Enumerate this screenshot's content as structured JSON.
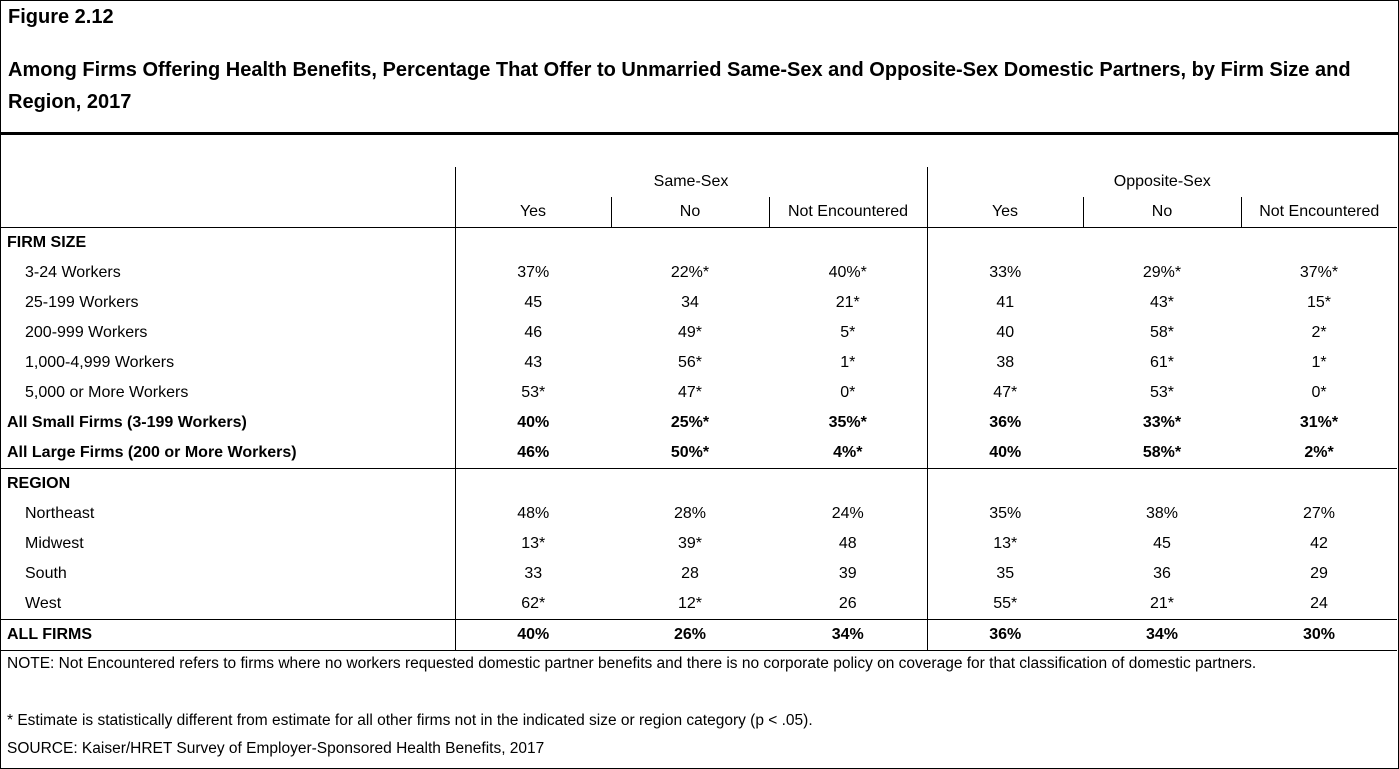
{
  "figure_label": "Figure 2.12",
  "title": "Among Firms Offering Health Benefits, Percentage That Offer to Unmarried Same-Sex and Opposite-Sex Domestic Partners, by Firm Size and Region, 2017",
  "table": {
    "group_headers": [
      "Same-Sex",
      "Opposite-Sex"
    ],
    "column_headers": [
      "Yes",
      "No",
      "Not Encountered",
      "Yes",
      "No",
      "Not Encountered"
    ],
    "sections": [
      {
        "heading": "FIRM SIZE",
        "rows": [
          {
            "label": "3-24 Workers",
            "values": [
              "37%",
              "22%*",
              "40%*",
              "33%",
              "29%*",
              "37%*"
            ]
          },
          {
            "label": "25-199 Workers",
            "values": [
              "45",
              "34",
              "21*",
              "41",
              "43*",
              "15*"
            ]
          },
          {
            "label": "200-999 Workers",
            "values": [
              "46",
              "49*",
              "5*",
              "40",
              "58*",
              "2*"
            ]
          },
          {
            "label": "1,000-4,999 Workers",
            "values": [
              "43",
              "56*",
              "1*",
              "38",
              "61*",
              "1*"
            ]
          },
          {
            "label": "5,000 or More Workers",
            "values": [
              "53*",
              "47*",
              "0*",
              "47*",
              "53*",
              "0*"
            ]
          }
        ],
        "summary_rows": [
          {
            "label": "All Small Firms (3-199 Workers)",
            "values": [
              "40%",
              "25%*",
              "35%*",
              "36%",
              "33%*",
              "31%*"
            ]
          },
          {
            "label": "All Large Firms (200 or More Workers)",
            "values": [
              "46%",
              "50%*",
              "4%*",
              "40%",
              "58%*",
              "2%*"
            ]
          }
        ]
      },
      {
        "heading": "REGION",
        "rows": [
          {
            "label": "Northeast",
            "values": [
              "48%",
              "28%",
              "24%",
              "35%",
              "38%",
              "27%"
            ]
          },
          {
            "label": "Midwest",
            "values": [
              "13*",
              "39*",
              "48",
              "13*",
              "45",
              "42"
            ]
          },
          {
            "label": "South",
            "values": [
              "33",
              "28",
              "39",
              "35",
              "36",
              "29"
            ]
          },
          {
            "label": "West",
            "values": [
              "62*",
              "12*",
              "26",
              "55*",
              "21*",
              "24"
            ]
          }
        ]
      }
    ],
    "total_row": {
      "label": "ALL FIRMS",
      "values": [
        "40%",
        "26%",
        "34%",
        "36%",
        "34%",
        "30%"
      ]
    }
  },
  "notes": {
    "note": "NOTE: Not Encountered refers to firms where no workers requested domestic partner benefits and there is no corporate policy on coverage for that classification of domestic partners.",
    "asterisk": "* Estimate is statistically different from estimate for all other firms not in the indicated size or region category (p < .05).",
    "source": "SOURCE: Kaiser/HRET Survey of Employer-Sponsored Health Benefits, 2017"
  }
}
